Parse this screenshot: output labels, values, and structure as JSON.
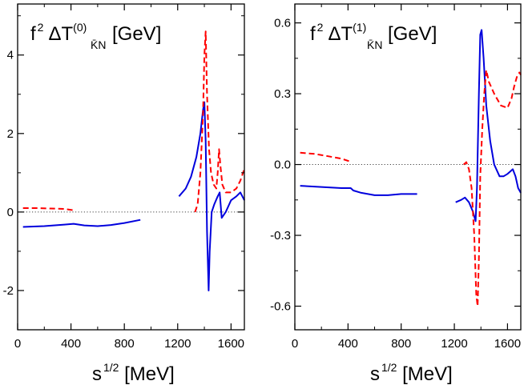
{
  "chart_data": [
    {
      "type": "line",
      "panel": "left",
      "title": {
        "prefix": "f",
        "prefix_sup": "2",
        "delta": "ΔT",
        "sup": "(0)",
        "sub": "K̄N",
        "unit": "[GeV]"
      },
      "xlabel": {
        "base": "s",
        "sup": "1/2",
        "rest": " [MeV]"
      },
      "ylabel": "",
      "xlim": [
        0,
        1700
      ],
      "ylim": [
        -3,
        5.3
      ],
      "xticks": [
        0,
        400,
        800,
        1200,
        1600
      ],
      "xtick_labels": [
        "0",
        "400",
        "800",
        "1200",
        "1600"
      ],
      "yticks": [
        -2,
        0,
        2,
        4
      ],
      "ytick_labels": [
        "-2",
        "0",
        "2",
        "4"
      ],
      "zero_line": true,
      "series": [
        {
          "name": "solid-blue-low",
          "color": "#0000dd",
          "style": "solid",
          "x": [
            40,
            200,
            350,
            420,
            500,
            600,
            700,
            800,
            920
          ],
          "y": [
            -0.38,
            -0.36,
            -0.32,
            -0.3,
            -0.34,
            -0.36,
            -0.33,
            -0.28,
            -0.2
          ]
        },
        {
          "name": "solid-blue-high",
          "color": "#0000dd",
          "style": "solid",
          "x": [
            1210,
            1260,
            1300,
            1340,
            1370,
            1390,
            1400,
            1410,
            1420,
            1432,
            1440,
            1455,
            1475,
            1500,
            1515,
            1530,
            1560,
            1600,
            1640,
            1670,
            1700
          ],
          "y": [
            0.4,
            0.6,
            0.9,
            1.4,
            2.0,
            2.6,
            2.8,
            1.8,
            -0.5,
            -2.0,
            -1.0,
            0.0,
            0.2,
            0.4,
            0.5,
            -0.15,
            0.0,
            0.3,
            0.4,
            0.5,
            0.3
          ]
        },
        {
          "name": "dashed-red-low",
          "color": "#ff0000",
          "style": "dashed",
          "x": [
            40,
            150,
            250,
            350,
            430
          ],
          "y": [
            0.1,
            0.1,
            0.09,
            0.08,
            0.04
          ]
        },
        {
          "name": "dashed-red-high",
          "color": "#ff0000",
          "style": "dashed",
          "x": [
            1330,
            1350,
            1370,
            1390,
            1400,
            1410,
            1420,
            1435,
            1450,
            1470,
            1490,
            1500,
            1510,
            1520,
            1535,
            1560,
            1600,
            1640,
            1670,
            1690,
            1700
          ],
          "y": [
            0.0,
            0.2,
            1.0,
            2.5,
            4.0,
            4.6,
            3.0,
            1.6,
            1.0,
            0.7,
            0.6,
            1.0,
            1.6,
            1.2,
            0.7,
            0.5,
            0.5,
            0.6,
            0.8,
            1.0,
            1.1
          ]
        }
      ]
    },
    {
      "type": "line",
      "panel": "right",
      "title": {
        "prefix": "f",
        "prefix_sup": "2",
        "delta": "ΔT",
        "sup": "(1)",
        "sub": "K̄N",
        "unit": "[GeV]"
      },
      "xlabel": {
        "base": "s",
        "sup": "1/2",
        "rest": " [MeV]"
      },
      "ylabel": "",
      "xlim": [
        0,
        1700
      ],
      "ylim": [
        -0.7,
        0.68
      ],
      "xticks": [
        0,
        400,
        800,
        1200,
        1600
      ],
      "xtick_labels": [
        "0",
        "400",
        "800",
        "1200",
        "1600"
      ],
      "yticks": [
        -0.6,
        -0.3,
        0.0,
        0.3,
        0.6
      ],
      "ytick_labels": [
        "-0.6",
        "-0.3",
        "0.0",
        "0.3",
        "0.6"
      ],
      "zero_line": true,
      "series": [
        {
          "name": "solid-blue-low",
          "color": "#0000dd",
          "style": "solid",
          "x": [
            40,
            200,
            350,
            420,
            440,
            500,
            600,
            700,
            800,
            920
          ],
          "y": [
            -0.09,
            -0.095,
            -0.1,
            -0.1,
            -0.11,
            -0.12,
            -0.13,
            -0.13,
            -0.125,
            -0.125
          ]
        },
        {
          "name": "solid-blue-high",
          "color": "#0000dd",
          "style": "solid",
          "x": [
            1210,
            1250,
            1280,
            1310,
            1340,
            1360,
            1370,
            1385,
            1395,
            1405,
            1420,
            1440,
            1470,
            1500,
            1540,
            1570,
            1600,
            1620,
            1640,
            1660,
            1680,
            1700
          ],
          "y": [
            -0.16,
            -0.15,
            -0.14,
            -0.16,
            -0.2,
            -0.24,
            -0.1,
            0.3,
            0.55,
            0.57,
            0.45,
            0.25,
            0.1,
            0.0,
            -0.05,
            -0.05,
            -0.04,
            -0.03,
            -0.02,
            -0.05,
            -0.1,
            -0.12
          ]
        },
        {
          "name": "dashed-red-low",
          "color": "#ff0000",
          "style": "dashed",
          "x": [
            40,
            150,
            250,
            350,
            430
          ],
          "y": [
            0.05,
            0.045,
            0.035,
            0.025,
            0.01
          ]
        },
        {
          "name": "dashed-red-high",
          "color": "#ff0000",
          "style": "dashed",
          "x": [
            1270,
            1290,
            1310,
            1330,
            1350,
            1365,
            1375,
            1385,
            1395,
            1410,
            1425,
            1440,
            1460,
            1500,
            1550,
            1600,
            1630,
            1650,
            1670,
            1690,
            1700
          ],
          "y": [
            0.0,
            0.01,
            -0.02,
            -0.1,
            -0.3,
            -0.55,
            -0.6,
            -0.4,
            -0.05,
            0.15,
            0.3,
            0.4,
            0.35,
            0.3,
            0.25,
            0.24,
            0.28,
            0.33,
            0.37,
            0.39,
            0.38
          ]
        }
      ]
    }
  ]
}
